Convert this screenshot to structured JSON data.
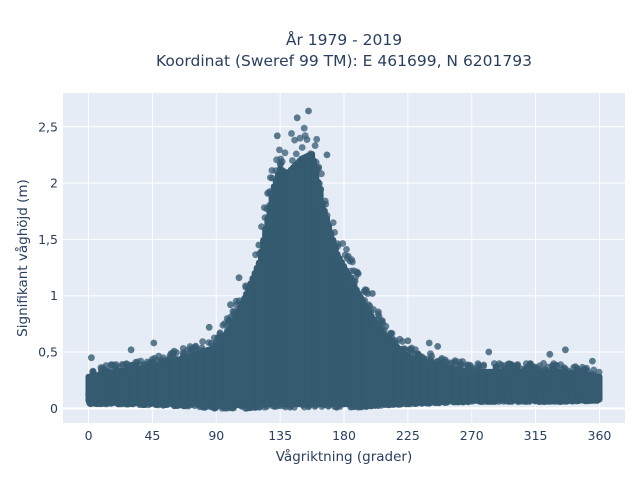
{
  "chart_data": {
    "type": "scatter",
    "title_line1": "År 1979 - 2019",
    "title_line2": "Koordinat (Sweref 99 TM): E 461699, N 6201793",
    "xlabel": "Vågriktning (grader)",
    "ylabel": "Signifikant våghöjd (m)",
    "xlim": [
      -18,
      378
    ],
    "ylim": [
      -0.13,
      2.8
    ],
    "x_ticks": [
      0,
      45,
      90,
      135,
      180,
      225,
      270,
      315,
      360
    ],
    "x_tick_labels": [
      "0",
      "45",
      "90",
      "135",
      "180",
      "225",
      "270",
      "315",
      "360"
    ],
    "y_ticks": [
      0,
      0.5,
      1,
      1.5,
      2,
      2.5
    ],
    "y_tick_labels": [
      "0",
      "0,5",
      "1",
      "1,5",
      "2",
      "2,5"
    ],
    "grid": true,
    "marker_color": "#355b71",
    "background_color": "#e5ecf6",
    "envelope": {
      "x": [
        0,
        20,
        45,
        70,
        90,
        100,
        110,
        120,
        130,
        135,
        140,
        150,
        158,
        165,
        175,
        190,
        200,
        210,
        225,
        250,
        270,
        300,
        330,
        360
      ],
      "upper": [
        0.35,
        0.4,
        0.45,
        0.55,
        0.65,
        0.85,
        1.15,
        1.5,
        2.25,
        2.45,
        2.4,
        2.55,
        2.6,
        2.1,
        1.6,
        1.2,
        0.95,
        0.75,
        0.55,
        0.45,
        0.4,
        0.4,
        0.4,
        0.35
      ],
      "lower": [
        0.04,
        0.04,
        0.03,
        0.02,
        0.0,
        0.0,
        0.0,
        0.01,
        0.01,
        0.01,
        0.01,
        0.01,
        0.01,
        0.01,
        0.01,
        0.01,
        0.02,
        0.03,
        0.04,
        0.05,
        0.06,
        0.06,
        0.06,
        0.07
      ]
    },
    "outliers": [
      {
        "x": 2,
        "y": 0.45
      },
      {
        "x": 30,
        "y": 0.52
      },
      {
        "x": 46,
        "y": 0.58
      },
      {
        "x": 85,
        "y": 0.72
      },
      {
        "x": 100,
        "y": 0.92
      },
      {
        "x": 106,
        "y": 1.16
      },
      {
        "x": 120,
        "y": 1.45
      },
      {
        "x": 133,
        "y": 2.42
      },
      {
        "x": 147,
        "y": 2.58
      },
      {
        "x": 155,
        "y": 2.64
      },
      {
        "x": 168,
        "y": 2.25
      },
      {
        "x": 183,
        "y": 1.35
      },
      {
        "x": 200,
        "y": 1.02
      },
      {
        "x": 225,
        "y": 0.6
      },
      {
        "x": 240,
        "y": 0.58
      },
      {
        "x": 246,
        "y": 0.55
      },
      {
        "x": 282,
        "y": 0.5
      },
      {
        "x": 302,
        "y": 0.38
      },
      {
        "x": 325,
        "y": 0.48
      },
      {
        "x": 336,
        "y": 0.52
      },
      {
        "x": 355,
        "y": 0.42
      }
    ]
  }
}
